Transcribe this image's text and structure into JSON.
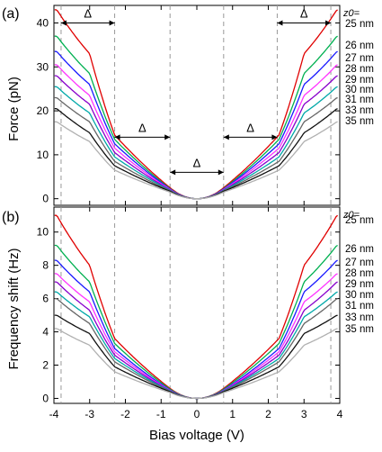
{
  "chart_data": [
    {
      "type": "line",
      "panel_label": "(a)",
      "ylabel": "Force (pN)",
      "xlim": [
        -4,
        4
      ],
      "ylim": [
        -1.5,
        44
      ],
      "xticks": [
        -4,
        -3,
        -2,
        -1,
        0,
        1,
        2,
        3,
        4
      ],
      "yticks": [
        0,
        10,
        20,
        30,
        40
      ],
      "series_header": "z0=",
      "series": [
        {
          "name": "25 nm",
          "color": "#e00000",
          "values": [
            43,
            33,
            14.5,
            2.5,
            0
          ]
        },
        {
          "name": "26 nm",
          "color": "#00b050",
          "values": [
            37,
            28.5,
            13.5,
            2.3,
            0
          ]
        },
        {
          "name": "27 nm",
          "color": "#1a1aff",
          "values": [
            33.5,
            26,
            12.5,
            2.2,
            0
          ]
        },
        {
          "name": "28 nm",
          "color": "#ff33ff",
          "values": [
            30.5,
            23.5,
            11.5,
            2.1,
            0
          ]
        },
        {
          "name": "29 nm",
          "color": "#8800cc",
          "values": [
            28,
            21.5,
            10.5,
            2.0,
            0
          ]
        },
        {
          "name": "30 nm",
          "color": "#00a8a8",
          "values": [
            25.5,
            19.5,
            9.5,
            1.9,
            0
          ]
        },
        {
          "name": "31 nm",
          "color": "#666666",
          "values": [
            23,
            17.5,
            8.5,
            1.8,
            0
          ]
        },
        {
          "name": "33 nm",
          "color": "#111111",
          "values": [
            20.5,
            15,
            7.5,
            1.7,
            0
          ]
        },
        {
          "name": "35 nm",
          "color": "#b0b0b0",
          "values": [
            17.5,
            13,
            6.5,
            1.5,
            0
          ]
        }
      ],
      "vlines": [
        -3.8,
        -2.3,
        -0.75,
        0.75,
        2.25,
        3.75
      ],
      "annotations": [
        {
          "text": "Δ",
          "from": -3.8,
          "to": -2.3,
          "y": 40
        },
        {
          "text": "Δ",
          "from": -2.3,
          "to": -0.75,
          "y": 14
        },
        {
          "text": "Δ",
          "from": -0.75,
          "to": 0.75,
          "y": 6
        },
        {
          "text": "Δ",
          "from": 0.75,
          "to": 2.25,
          "y": 14
        },
        {
          "text": "Δ",
          "from": 2.25,
          "to": 3.75,
          "y": 40
        }
      ]
    },
    {
      "type": "line",
      "panel_label": "(b)",
      "ylabel": "Frequency shift (Hz)",
      "xlabel": "Bias voltage (V)",
      "xlim": [
        -4,
        4
      ],
      "ylim": [
        -0.3,
        11.5
      ],
      "xticks": [
        -4,
        -3,
        -2,
        -1,
        0,
        1,
        2,
        3,
        4
      ],
      "yticks": [
        0,
        2,
        4,
        6,
        8,
        10
      ],
      "series_header": "z0=",
      "series": [
        {
          "name": "25 nm",
          "color": "#e00000",
          "values": [
            11,
            8,
            3.6,
            0.6,
            0
          ]
        },
        {
          "name": "26 nm",
          "color": "#00b050",
          "values": [
            9.2,
            7.0,
            3.3,
            0.55,
            0
          ]
        },
        {
          "name": "27 nm",
          "color": "#1a1aff",
          "values": [
            8.3,
            6.4,
            3.0,
            0.5,
            0
          ]
        },
        {
          "name": "28 nm",
          "color": "#ff33ff",
          "values": [
            7.5,
            5.8,
            2.8,
            0.48,
            0
          ]
        },
        {
          "name": "29 nm",
          "color": "#8800cc",
          "values": [
            7.0,
            5.3,
            2.6,
            0.46,
            0
          ]
        },
        {
          "name": "30 nm",
          "color": "#00a8a8",
          "values": [
            6.4,
            4.9,
            2.4,
            0.44,
            0
          ]
        },
        {
          "name": "31 nm",
          "color": "#666666",
          "values": [
            6.0,
            4.5,
            2.2,
            0.42,
            0
          ]
        },
        {
          "name": "33 nm",
          "color": "#111111",
          "values": [
            5.0,
            3.9,
            1.9,
            0.4,
            0
          ]
        },
        {
          "name": "35 nm",
          "color": "#b0b0b0",
          "values": [
            4.2,
            3.2,
            1.6,
            0.35,
            0
          ]
        }
      ],
      "vlines": [
        -3.8,
        -2.3,
        -0.75,
        0.75,
        2.25,
        3.75
      ]
    }
  ]
}
